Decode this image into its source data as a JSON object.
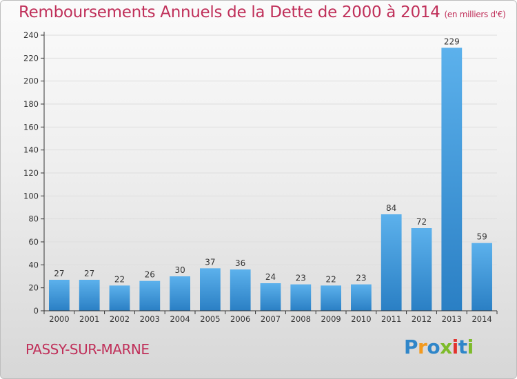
{
  "page": {
    "commune": "PASSY-SUR-MARNE",
    "logo_text": "Proxiti"
  },
  "colors": {
    "title": "#c0305a",
    "bar_light": "#5cb1ec",
    "bar_dark": "#2a7fc4",
    "axis": "#333333",
    "grid": "#dddddd",
    "logo": [
      "#2f86c9",
      "#f39a1e",
      "#2f86c9",
      "#7dbb2a",
      "#e2322d",
      "#2f86c9",
      "#7dbb2a"
    ]
  },
  "chart_data": {
    "type": "bar",
    "title": "Remboursements Annuels de la Dette de 2000 à 2014",
    "subtitle": "(en milliers d'€)",
    "xlabel": "",
    "ylabel": "",
    "categories": [
      "2000",
      "2001",
      "2002",
      "2003",
      "2004",
      "2005",
      "2006",
      "2007",
      "2008",
      "2009",
      "2010",
      "2011",
      "2012",
      "2013",
      "2014"
    ],
    "values": [
      27,
      27,
      22,
      26,
      30,
      37,
      36,
      24,
      23,
      22,
      23,
      84,
      72,
      229,
      59
    ],
    "ylim": [
      0,
      240
    ],
    "yticks": [
      0,
      20,
      40,
      60,
      80,
      100,
      120,
      140,
      160,
      180,
      200,
      220,
      240
    ],
    "data_labels": true,
    "legend": "none",
    "grid": "horizontal-light"
  }
}
